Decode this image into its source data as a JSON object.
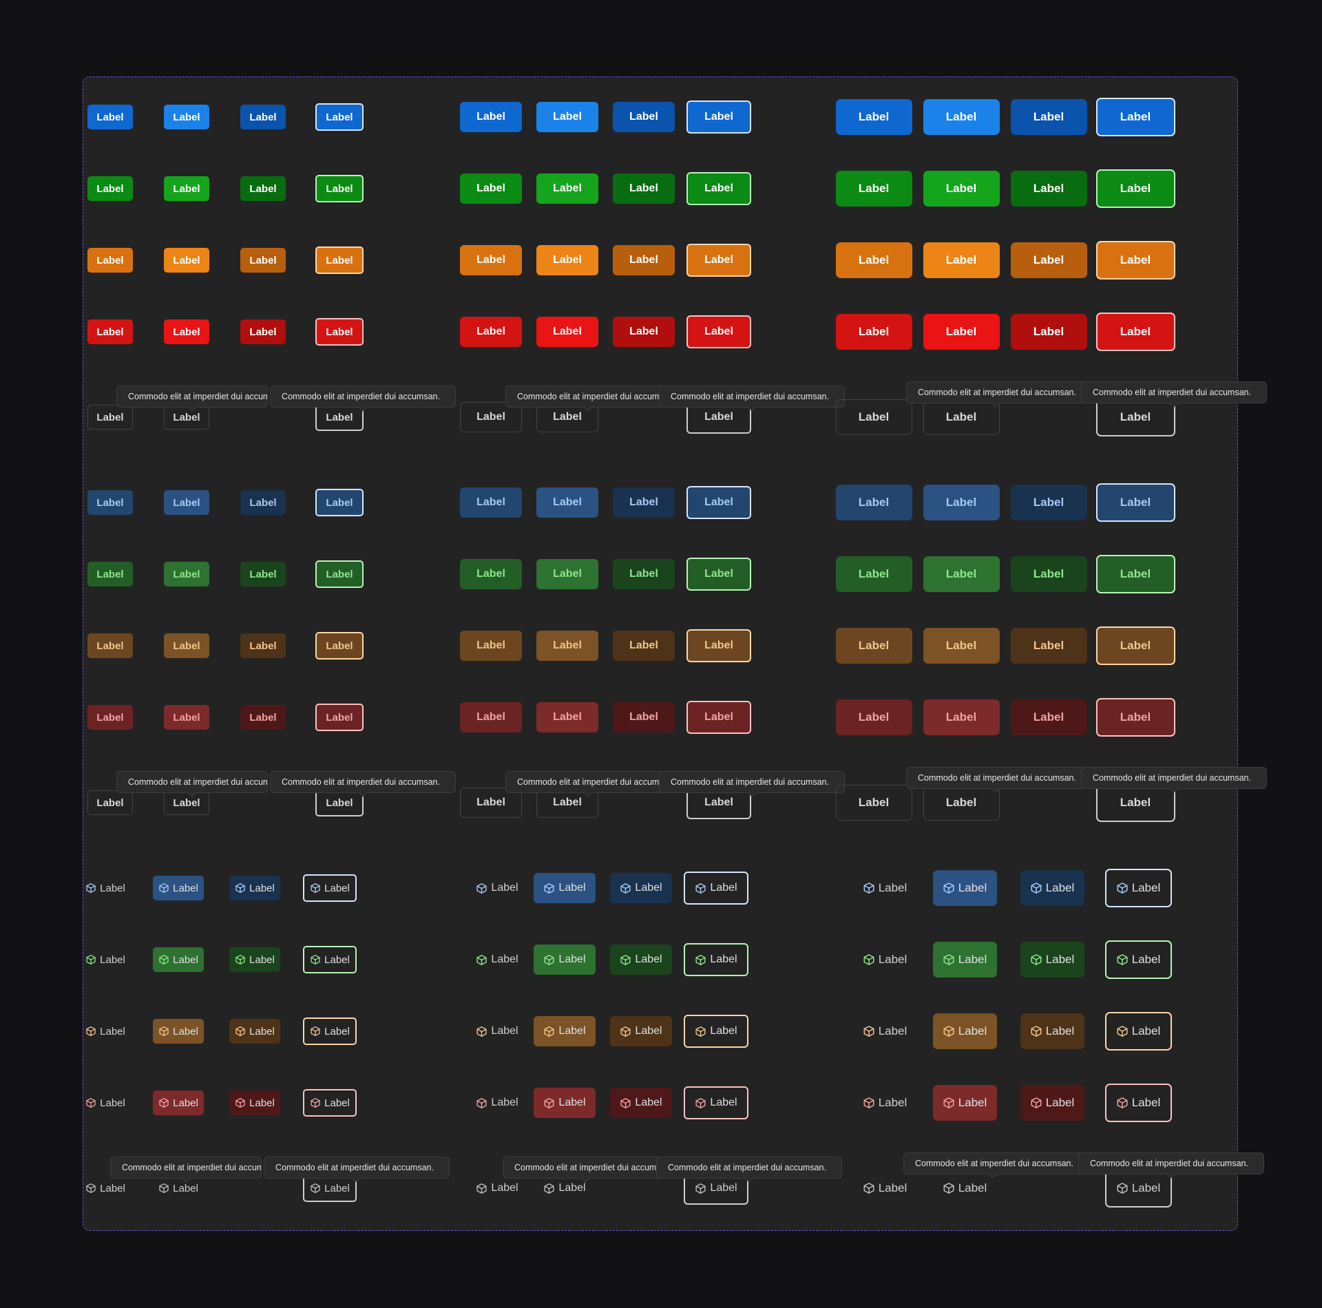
{
  "label": "Label",
  "tooltip_text": "Commodo elit at imperdiet dui accumsan.",
  "icon": "cube-outline-icon",
  "colors": {
    "solid": {
      "blue": [
        "#0f67d0",
        "#1b82ea",
        "#0a54ad",
        "#0f67d0"
      ],
      "green": [
        "#0b8a14",
        "#14a51d",
        "#086d10",
        "#0b8a14"
      ],
      "orange": [
        "#d87210",
        "#ec8515",
        "#b85f0d",
        "#d87210"
      ],
      "red": [
        "#d41313",
        "#ea1414",
        "#b10e0e",
        "#d41313"
      ]
    },
    "soft": {
      "blue": [
        "#22466e",
        "#2b5282",
        "#19324f",
        "#22466e"
      ],
      "green": [
        "#235e26",
        "#2d7230",
        "#1a451c",
        "#235e26"
      ],
      "orange": [
        "#6b4621",
        "#7c5326",
        "#4e3318",
        "#6b4621"
      ],
      "red": [
        "#6b2324",
        "#7d2a2b",
        "#4e1819",
        "#6b2324"
      ]
    },
    "focus_border": {
      "blue": "#d6e6ff",
      "green": "#b8f5b8",
      "orange": "#ffd7a8",
      "red": "#ffc2c2"
    },
    "icon_text": {
      "blue": "#a8c9f5",
      "green": "#8ee58e",
      "orange": "#f2c48d",
      "red": "#f0a3a3"
    },
    "neutral_border": "#444444",
    "neutral_focus_border": "#cfcfcf"
  }
}
